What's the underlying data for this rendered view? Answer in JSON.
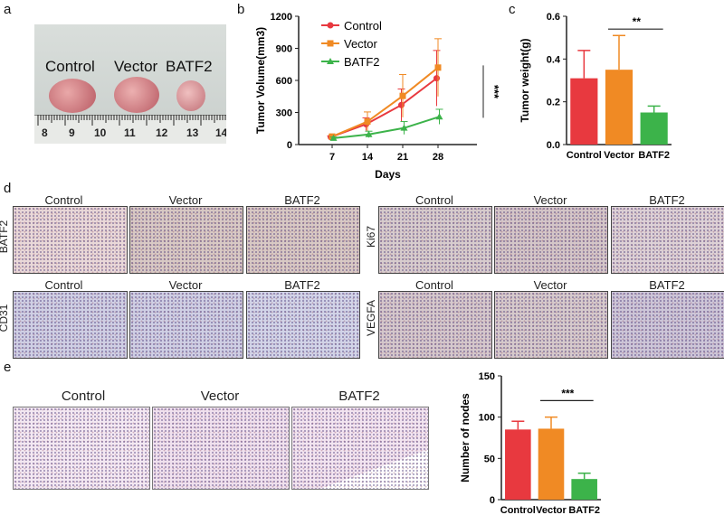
{
  "panels": {
    "a": "a",
    "b": "b",
    "c": "c",
    "d": "d",
    "e": "e"
  },
  "panel_a": {
    "labels": [
      "Control",
      "Vector",
      "BATF2"
    ],
    "ruler_numbers": [
      "8",
      "9",
      "10",
      "11",
      "12",
      "13",
      "14"
    ]
  },
  "panel_d": {
    "col_titles": [
      "Control",
      "Vector",
      "BATF2"
    ],
    "row_labels": [
      "BATF2",
      "Ki67",
      "CD31",
      "VEGFA"
    ]
  },
  "panel_e": {
    "col_titles": [
      "Control",
      "Vector",
      "BATF2"
    ]
  },
  "colors": {
    "control": "#e8393f",
    "vector": "#f08a24",
    "batf2": "#3cb34a"
  },
  "chart_data": [
    {
      "id": "b",
      "type": "line",
      "xlabel": "Days",
      "ylabel": "Tumor Volume(mm3)",
      "x": [
        7,
        14,
        21,
        28
      ],
      "ylim": [
        0,
        1200
      ],
      "yticks": [
        0,
        300,
        600,
        900,
        1200
      ],
      "series": [
        {
          "name": "Control",
          "values": [
            70,
            190,
            370,
            620
          ],
          "errors": [
            10,
            60,
            150,
            260
          ]
        },
        {
          "name": "Vector",
          "values": [
            75,
            215,
            455,
            720
          ],
          "errors": [
            15,
            90,
            200,
            270
          ]
        },
        {
          "name": "BATF2",
          "values": [
            60,
            95,
            155,
            260
          ],
          "errors": [
            10,
            30,
            60,
            70
          ]
        }
      ],
      "legend_position": "top-left",
      "annotation": "***"
    },
    {
      "id": "c",
      "type": "bar",
      "ylabel": "Tumor weight(g)",
      "categories": [
        "Control",
        "Vector",
        "BATF2"
      ],
      "values": [
        0.31,
        0.35,
        0.15
      ],
      "errors": [
        0.13,
        0.16,
        0.03
      ],
      "ylim": [
        0,
        0.6
      ],
      "yticks": [
        "0.0",
        "0.2",
        "0.4",
        "0.6"
      ],
      "annotation": "**"
    },
    {
      "id": "e",
      "type": "bar",
      "ylabel": "Number of nodes",
      "categories": [
        "Control",
        "Vector",
        "BATF2"
      ],
      "values": [
        85,
        86,
        25
      ],
      "errors": [
        10,
        14,
        7
      ],
      "ylim": [
        0,
        150
      ],
      "yticks": [
        "0",
        "50",
        "100",
        "150"
      ],
      "annotation": "***"
    }
  ]
}
